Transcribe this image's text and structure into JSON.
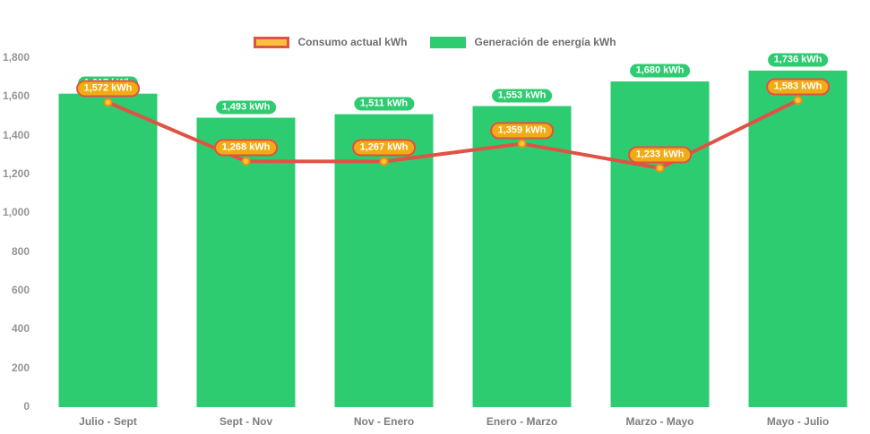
{
  "legend": {
    "consumption": "Consumo actual kWh",
    "generation": "Generación de energía kWh"
  },
  "colors": {
    "bar_green": "#2ecc71",
    "line_red": "#e05243",
    "marker_fill": "#fdc62c",
    "marker_stroke": "#ef8b1d",
    "pill_green_bg": "#2ecc71",
    "pill_green_border": "#ffffff",
    "pill_orange_bg": "#f1ab15",
    "pill_orange_border": "#e05243",
    "legend_swatch_consumption_fill": "#f6c23e",
    "legend_swatch_consumption_border": "#e05243",
    "legend_swatch_generation_fill": "#2ecc71",
    "axis_text": "#7d7d7d"
  },
  "chart_data": {
    "type": "bar",
    "categories": [
      "Julio - Sept",
      "Sept - Nov",
      "Nov - Enero",
      "Enero - Marzo",
      "Marzo - Mayo",
      "Mayo - Julio"
    ],
    "series": [
      {
        "name": "Generación de energía kWh",
        "type": "bar",
        "values": [
          1617,
          1493,
          1511,
          1553,
          1680,
          1736
        ],
        "labels": [
          "1,617 kWh",
          "1,493 kWh",
          "1,511 kWh",
          "1,553 kWh",
          "1,680 kWh",
          "1,736 kWh"
        ]
      },
      {
        "name": "Consumo actual kWh",
        "type": "line",
        "values": [
          1572,
          1268,
          1267,
          1359,
          1233,
          1583
        ],
        "labels": [
          "1,572 kWh",
          "1,268 kWh",
          "1,267 kWh",
          "1,359 kWh",
          "1,233 kWh",
          "1,583 kWh"
        ]
      }
    ],
    "ylim": [
      0,
      1800
    ],
    "y_ticks": {
      "values": [
        0,
        200,
        400,
        600,
        800,
        1000,
        1200,
        1400,
        1600,
        1800
      ],
      "labels": [
        "0",
        "200",
        "400",
        "600",
        "800",
        "1,000",
        "1,200",
        "1,400",
        "1,600",
        "1,800"
      ]
    },
    "grid": false,
    "legend_position": "top"
  }
}
